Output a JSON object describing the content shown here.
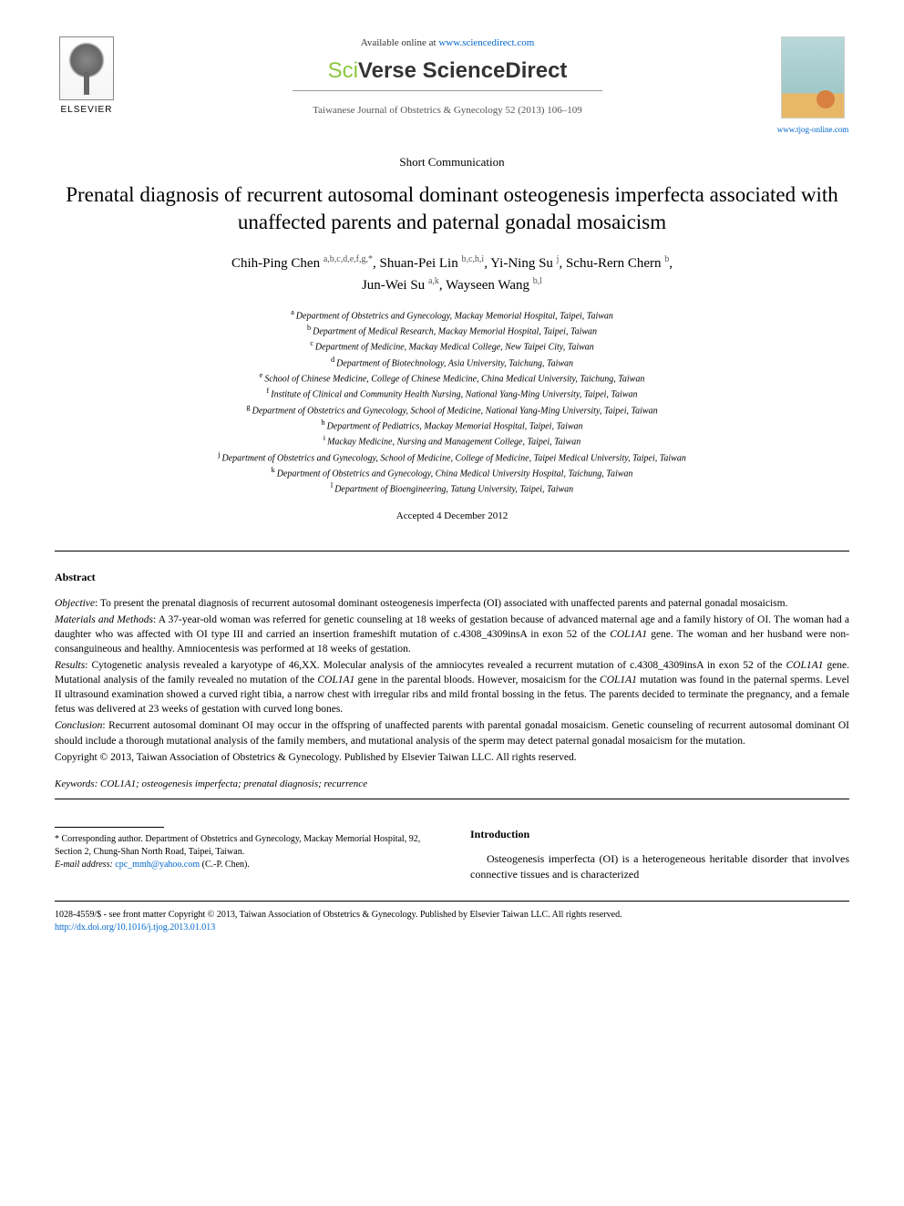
{
  "header": {
    "publisher_name": "ELSEVIER",
    "available_prefix": "Available online at ",
    "available_url": "www.sciencedirect.com",
    "platform_prefix": "Sci",
    "platform_mid": "Verse ",
    "platform_suffix": "ScienceDirect",
    "journal_ref": "Taiwanese Journal of Obstetrics & Gynecology 52 (2013) 106–109",
    "journal_cover_title": "Taiwanese Journal of Obstetrics & Gynecology",
    "journal_site": "www.tjog-online.com"
  },
  "article": {
    "type": "Short Communication",
    "title": "Prenatal diagnosis of recurrent autosomal dominant osteogenesis imperfecta associated with unaffected parents and paternal gonadal mosaicism"
  },
  "authors": [
    {
      "name": "Chih-Ping Chen",
      "sup": "a,b,c,d,e,f,g,*"
    },
    {
      "name": "Shuan-Pei Lin",
      "sup": "b,c,h,i"
    },
    {
      "name": "Yi-Ning Su",
      "sup": "j"
    },
    {
      "name": "Schu-Rern Chern",
      "sup": "b"
    },
    {
      "name": "Jun-Wei Su",
      "sup": "a,k"
    },
    {
      "name": "Wayseen Wang",
      "sup": "b,l"
    }
  ],
  "affiliations": [
    {
      "sup": "a",
      "text": "Department of Obstetrics and Gynecology, Mackay Memorial Hospital, Taipei, Taiwan"
    },
    {
      "sup": "b",
      "text": "Department of Medical Research, Mackay Memorial Hospital, Taipei, Taiwan"
    },
    {
      "sup": "c",
      "text": "Department of Medicine, Mackay Medical College, New Taipei City, Taiwan"
    },
    {
      "sup": "d",
      "text": "Department of Biotechnology, Asia University, Taichung, Taiwan"
    },
    {
      "sup": "e",
      "text": "School of Chinese Medicine, College of Chinese Medicine, China Medical University, Taichung, Taiwan"
    },
    {
      "sup": "f",
      "text": "Institute of Clinical and Community Health Nursing, National Yang-Ming University, Taipei, Taiwan"
    },
    {
      "sup": "g",
      "text": "Department of Obstetrics and Gynecology, School of Medicine, National Yang-Ming University, Taipei, Taiwan"
    },
    {
      "sup": "h",
      "text": "Department of Pediatrics, Mackay Memorial Hospital, Taipei, Taiwan"
    },
    {
      "sup": "i",
      "text": "Mackay Medicine, Nursing and Management College, Taipei, Taiwan"
    },
    {
      "sup": "j",
      "text": "Department of Obstetrics and Gynecology, School of Medicine, College of Medicine, Taipei Medical University, Taipei, Taiwan"
    },
    {
      "sup": "k",
      "text": "Department of Obstetrics and Gynecology, China Medical University Hospital, Taichung, Taiwan"
    },
    {
      "sup": "l",
      "text": "Department of Bioengineering, Tatung University, Taipei, Taiwan"
    }
  ],
  "accepted": "Accepted 4 December 2012",
  "abstract": {
    "heading": "Abstract",
    "sections": {
      "objective_label": "Objective",
      "objective": ": To present the prenatal diagnosis of recurrent autosomal dominant osteogenesis imperfecta (OI) associated with unaffected parents and paternal gonadal mosaicism.",
      "materials_label": "Materials and Methods",
      "materials_1": ": A 37-year-old woman was referred for genetic counseling at 18 weeks of gestation because of advanced maternal age and a family history of OI. The woman had a daughter who was affected with OI type III and carried an insertion frameshift mutation of c.4308_4309insA in exon 52 of the ",
      "materials_gene": "COL1A1",
      "materials_2": " gene. The woman and her husband were non-consanguineous and healthy. Amniocentesis was performed at 18 weeks of gestation.",
      "results_label": "Results",
      "results_1": ": Cytogenetic analysis revealed a karyotype of 46,XX. Molecular analysis of the amniocytes revealed a recurrent mutation of c.4308_4309insA in exon 52 of the ",
      "results_2": " gene. Mutational analysis of the family revealed no mutation of the ",
      "results_3": " gene in the parental bloods. However, mosaicism for the ",
      "results_4": " mutation was found in the paternal sperms. Level II ultrasound examination showed a curved right tibia, a narrow chest with irregular ribs and mild frontal bossing in the fetus. The parents decided to terminate the pregnancy, and a female fetus was delivered at 23 weeks of gestation with curved long bones.",
      "conclusion_label": "Conclusion",
      "conclusion": ": Recurrent autosomal dominant OI may occur in the offspring of unaffected parents with parental gonadal mosaicism. Genetic counseling of recurrent autosomal dominant OI should include a thorough mutational analysis of the family members, and mutational analysis of the sperm may detect paternal gonadal mosaicism for the mutation.",
      "copyright": "Copyright © 2013, Taiwan Association of Obstetrics & Gynecology. Published by Elsevier Taiwan LLC. All rights reserved."
    }
  },
  "keywords": {
    "label": "Keywords:",
    "text": " COL1A1; osteogenesis imperfecta; prenatal diagnosis; recurrence"
  },
  "footnote": {
    "corr": "* Corresponding author. Department of Obstetrics and Gynecology, Mackay Memorial Hospital, 92, Section 2, Chung-Shan North Road, Taipei, Taiwan.",
    "email_label": "E-mail address:",
    "email": " cpc_mmh@yahoo.com",
    "email_suffix": " (C.-P. Chen)."
  },
  "intro": {
    "heading": "Introduction",
    "text": "Osteogenesis imperfecta (OI) is a heterogeneous heritable disorder that involves connective tissues and is characterized"
  },
  "footer": {
    "issn": "1028-4559/$ - see front matter Copyright © 2013, Taiwan Association of Obstetrics & Gynecology. Published by Elsevier Taiwan LLC. All rights reserved.",
    "doi": "http://dx.doi.org/10.1016/j.tjog.2013.01.013"
  },
  "colors": {
    "link": "#0066cc",
    "sciverse_green": "#8cc63f"
  }
}
